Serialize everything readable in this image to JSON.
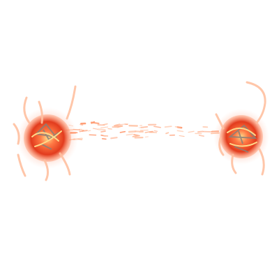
{
  "scene": {
    "background": "#ffffff",
    "palette": {
      "core_dark": "#7a2418",
      "core": "#e23b1d",
      "core_light": "#ff7a45",
      "glow": "#ff9a70",
      "flare": "#ffd98a",
      "streak": "#ffc0a0",
      "debris": "#8a8078"
    },
    "sprites": [
      {
        "name": "fire-orb-left",
        "icon": "fire-orb-icon"
      },
      {
        "name": "fire-orb-right",
        "icon": "fire-orb-icon"
      }
    ],
    "effect": "spark-trail"
  }
}
